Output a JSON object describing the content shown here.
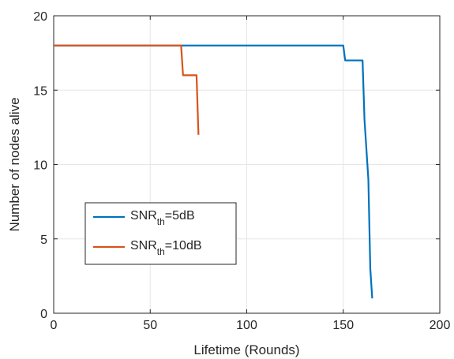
{
  "chart_data": {
    "type": "line",
    "title": "",
    "xlabel": "Lifetime (Rounds)",
    "ylabel": "Number of nodes alive",
    "xlim": [
      0,
      200
    ],
    "ylim": [
      0,
      20
    ],
    "xticks": [
      0,
      50,
      100,
      150,
      200
    ],
    "yticks": [
      0,
      5,
      10,
      15,
      20
    ],
    "grid": true,
    "legend_position": "center-left",
    "series": [
      {
        "name_base": "SNR",
        "name_sub": "th",
        "name_tail": "=5dB",
        "color": "#0072BD",
        "x": [
          0,
          150,
          151,
          160,
          161,
          163,
          164,
          165
        ],
        "y": [
          18,
          18,
          17,
          17,
          13,
          9,
          3,
          1
        ]
      },
      {
        "name_base": "SNR",
        "name_sub": "th",
        "name_tail": "=10dB",
        "color": "#D95319",
        "x": [
          0,
          66,
          67,
          74,
          75
        ],
        "y": [
          18,
          18,
          16,
          16,
          12
        ]
      }
    ]
  }
}
